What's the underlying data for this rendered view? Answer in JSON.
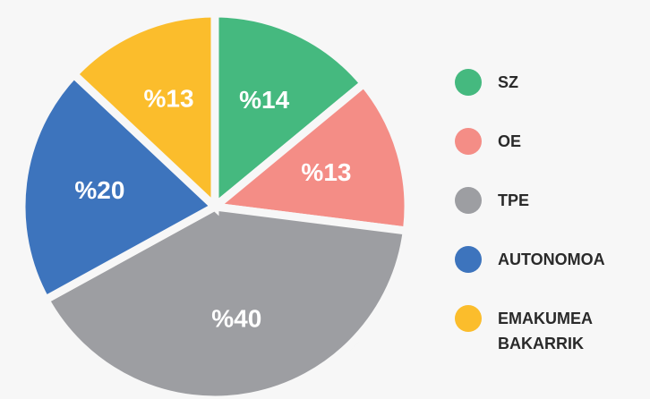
{
  "chart_data": {
    "type": "pie",
    "categories": [
      "SZ",
      "OE",
      "TPE",
      "AUTONOMOA",
      "EMAKUMEA BAKARRIK"
    ],
    "values": [
      14,
      13,
      40,
      20,
      13
    ],
    "value_labels": [
      "%14",
      "%13",
      "%40",
      "%20",
      "%13"
    ],
    "colors": [
      "#45b97f",
      "#f48d86",
      "#9d9ea2",
      "#3d74bd",
      "#fbbd2c"
    ],
    "legend": "right"
  }
}
